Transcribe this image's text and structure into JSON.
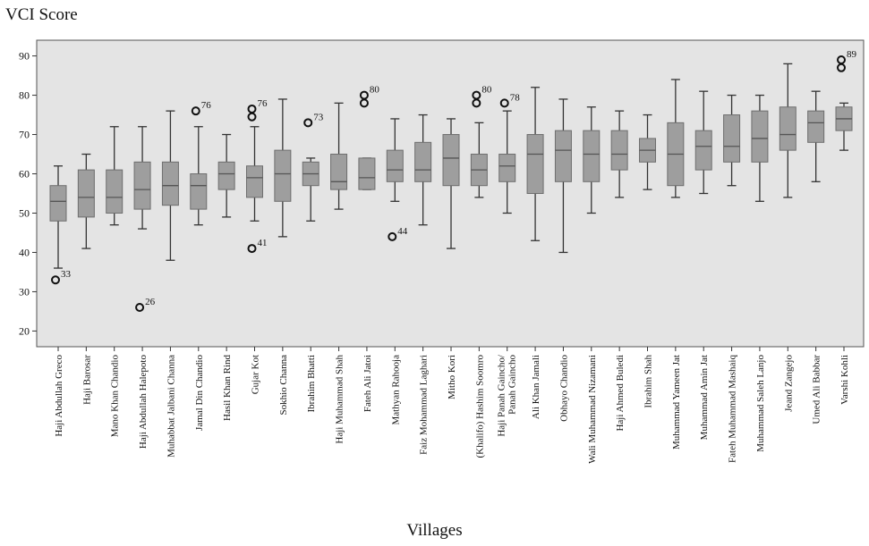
{
  "chart_data": {
    "type": "box",
    "ylabel": "VCI Score",
    "xlabel": "Villages",
    "ylim": [
      16,
      94
    ],
    "yticks": [
      20,
      30,
      40,
      50,
      60,
      70,
      80,
      90
    ],
    "grid": false,
    "colors": {
      "plot_background": "#e4e4e4",
      "box_fill": "#9e9e9e",
      "line": "#333333"
    },
    "categories": [
      "Haji Abdullah Greco",
      "Haji Barosar",
      "Mano Khan Chandio",
      "Haji Abdullah Halepoto",
      "Muhabbat Jalbani Channa",
      "Jamal Din Chandio",
      "Hasil Khan Rind",
      "Gujar Kot",
      "Sokhio Channa",
      "Ibrahim Bhatti",
      "Haji Muhammad Shah",
      "Fateh Ali Jatoi",
      "Mathyan Rahooja",
      "Faiz Mohammad Laghari",
      "Mitho Kori",
      "(Khalifo) Hashim Soomro",
      "Haji Panah Gaincho/ Panah Gaincho",
      "Ali Khan Jamali",
      "Obhayo Chandio",
      "Wali Muhammad Nizamani",
      "Haji Ahmed Buledi",
      "Ibrahim Shah",
      "Muhammad Yameen Jat",
      "Muhammad Amin Jat",
      "Fateh Muhammad Mashaiq",
      "Muhammad Saleh Lanjo",
      "Jeand Zangejo",
      "Umed Ali Babbar",
      "Varshi Kohli"
    ],
    "boxes": [
      {
        "min": 36,
        "q1": 48,
        "median": 53,
        "q3": 57,
        "max": 62,
        "outliers": [
          {
            "y": 33,
            "label": "33"
          }
        ]
      },
      {
        "min": 41,
        "q1": 49,
        "median": 54,
        "q3": 61,
        "max": 65,
        "outliers": []
      },
      {
        "min": 47,
        "q1": 50,
        "median": 54,
        "q3": 61,
        "max": 72,
        "outliers": []
      },
      {
        "min": 46,
        "q1": 51,
        "median": 56,
        "q3": 63,
        "max": 72,
        "outliers": [
          {
            "y": 26,
            "label": "26"
          }
        ]
      },
      {
        "min": 38,
        "q1": 52,
        "median": 57,
        "q3": 63,
        "max": 76,
        "outliers": []
      },
      {
        "min": 47,
        "q1": 51,
        "median": 57,
        "q3": 60,
        "max": 72,
        "outliers": [
          {
            "y": 76,
            "label": "76"
          }
        ]
      },
      {
        "min": 49,
        "q1": 56,
        "median": 60,
        "q3": 63,
        "max": 70,
        "outliers": []
      },
      {
        "min": 48,
        "q1": 54,
        "median": 59,
        "q3": 62,
        "max": 72,
        "outliers": [
          {
            "y": 41,
            "label": "41"
          },
          {
            "y": 74.5,
            "label": ""
          },
          {
            "y": 76.5,
            "label": "76"
          }
        ]
      },
      {
        "min": 44,
        "q1": 53,
        "median": 60,
        "q3": 66,
        "max": 79,
        "outliers": []
      },
      {
        "min": 48,
        "q1": 57,
        "median": 60,
        "q3": 63,
        "max": 64,
        "outliers": [
          {
            "y": 73,
            "label": "73"
          }
        ]
      },
      {
        "min": 51,
        "q1": 56,
        "median": 58,
        "q3": 65,
        "max": 78,
        "outliers": []
      },
      {
        "min": 56,
        "q1": 56,
        "median": 59,
        "q3": 64,
        "max": 64,
        "outliers": [
          {
            "y": 78,
            "label": ""
          },
          {
            "y": 80,
            "label": "80"
          }
        ]
      },
      {
        "min": 53,
        "q1": 58,
        "median": 61,
        "q3": 66,
        "max": 74,
        "outliers": [
          {
            "y": 44,
            "label": "44"
          }
        ]
      },
      {
        "min": 47,
        "q1": 58,
        "median": 61,
        "q3": 68,
        "max": 75,
        "outliers": []
      },
      {
        "min": 41,
        "q1": 57,
        "median": 64,
        "q3": 70,
        "max": 74,
        "outliers": []
      },
      {
        "min": 54,
        "q1": 57,
        "median": 61,
        "q3": 65,
        "max": 73,
        "outliers": [
          {
            "y": 78,
            "label": ""
          },
          {
            "y": 80,
            "label": "80"
          }
        ]
      },
      {
        "min": 50,
        "q1": 58,
        "median": 62,
        "q3": 65,
        "max": 76,
        "outliers": [
          {
            "y": 78,
            "label": "78"
          }
        ]
      },
      {
        "min": 43,
        "q1": 55,
        "median": 65,
        "q3": 70,
        "max": 82,
        "outliers": []
      },
      {
        "min": 40,
        "q1": 58,
        "median": 66,
        "q3": 71,
        "max": 79,
        "outliers": []
      },
      {
        "min": 50,
        "q1": 58,
        "median": 65,
        "q3": 71,
        "max": 77,
        "outliers": []
      },
      {
        "min": 54,
        "q1": 61,
        "median": 65,
        "q3": 71,
        "max": 76,
        "outliers": []
      },
      {
        "min": 56,
        "q1": 63,
        "median": 66,
        "q3": 69,
        "max": 75,
        "outliers": []
      },
      {
        "min": 54,
        "q1": 57,
        "median": 65,
        "q3": 73,
        "max": 84,
        "outliers": []
      },
      {
        "min": 55,
        "q1": 61,
        "median": 67,
        "q3": 71,
        "max": 81,
        "outliers": []
      },
      {
        "min": 57,
        "q1": 63,
        "median": 67,
        "q3": 75,
        "max": 80,
        "outliers": []
      },
      {
        "min": 53,
        "q1": 63,
        "median": 69,
        "q3": 76,
        "max": 80,
        "outliers": []
      },
      {
        "min": 54,
        "q1": 66,
        "median": 70,
        "q3": 77,
        "max": 88,
        "outliers": []
      },
      {
        "min": 58,
        "q1": 68,
        "median": 73,
        "q3": 76,
        "max": 81,
        "outliers": []
      },
      {
        "min": 66,
        "q1": 71,
        "median": 74,
        "q3": 77,
        "max": 78,
        "outliers": [
          {
            "y": 87,
            "label": ""
          },
          {
            "y": 89,
            "label": "89"
          }
        ]
      }
    ]
  }
}
